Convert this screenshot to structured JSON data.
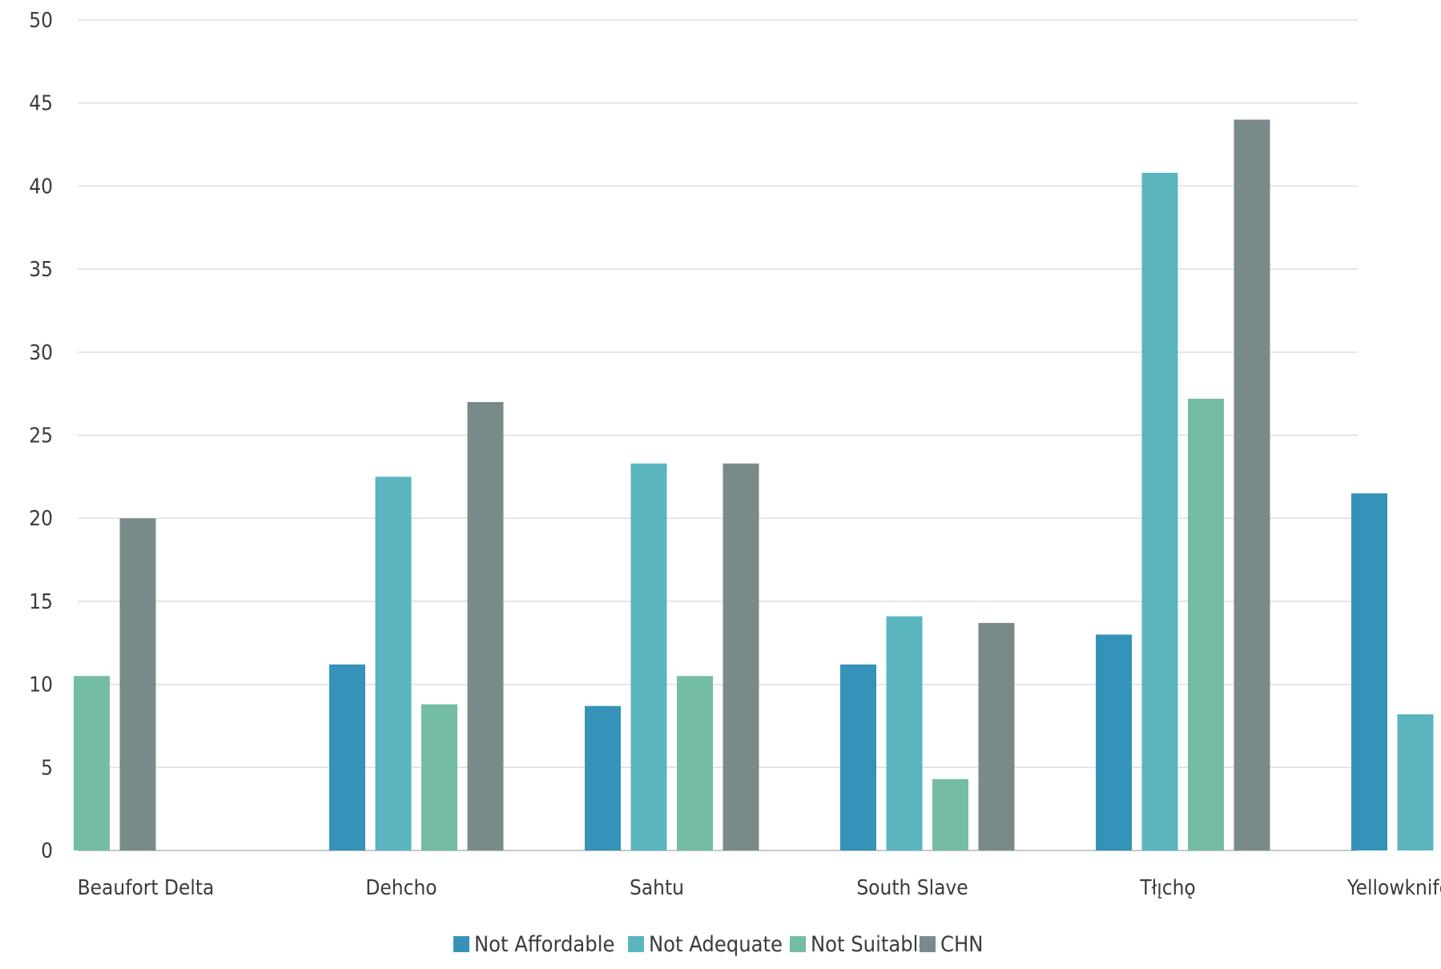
{
  "chart_data": {
    "type": "bar",
    "title": "",
    "xlabel": "",
    "ylabel": "",
    "ylim": [
      0,
      50
    ],
    "yticks": [
      0,
      5,
      10,
      15,
      20,
      25,
      30,
      35,
      40,
      45,
      50
    ],
    "grid": true,
    "legend_position": "bottom",
    "categories": [
      "Beaufort Delta",
      "Dehcho",
      "Sahtu",
      "South Slave",
      "Tłı̨chǫ",
      "Yellowknife Area"
    ],
    "series": [
      {
        "name": "Not Affordable",
        "color": "#3592b9",
        "values": [
          null,
          11.2,
          8.7,
          11.2,
          13.0,
          21.5
        ]
      },
      {
        "name": "Not Adequate",
        "color": "#5ab5bf",
        "values": [
          null,
          22.5,
          23.3,
          14.1,
          40.8,
          8.2
        ]
      },
      {
        "name": "Not Suitable",
        "color": "#74bca3",
        "values": [
          10.5,
          8.8,
          10.5,
          4.3,
          27.2,
          null
        ]
      },
      {
        "name": "CHN",
        "color": "#798a8b",
        "values": [
          20.0,
          27.0,
          23.3,
          13.7,
          44.0,
          null
        ]
      }
    ]
  }
}
